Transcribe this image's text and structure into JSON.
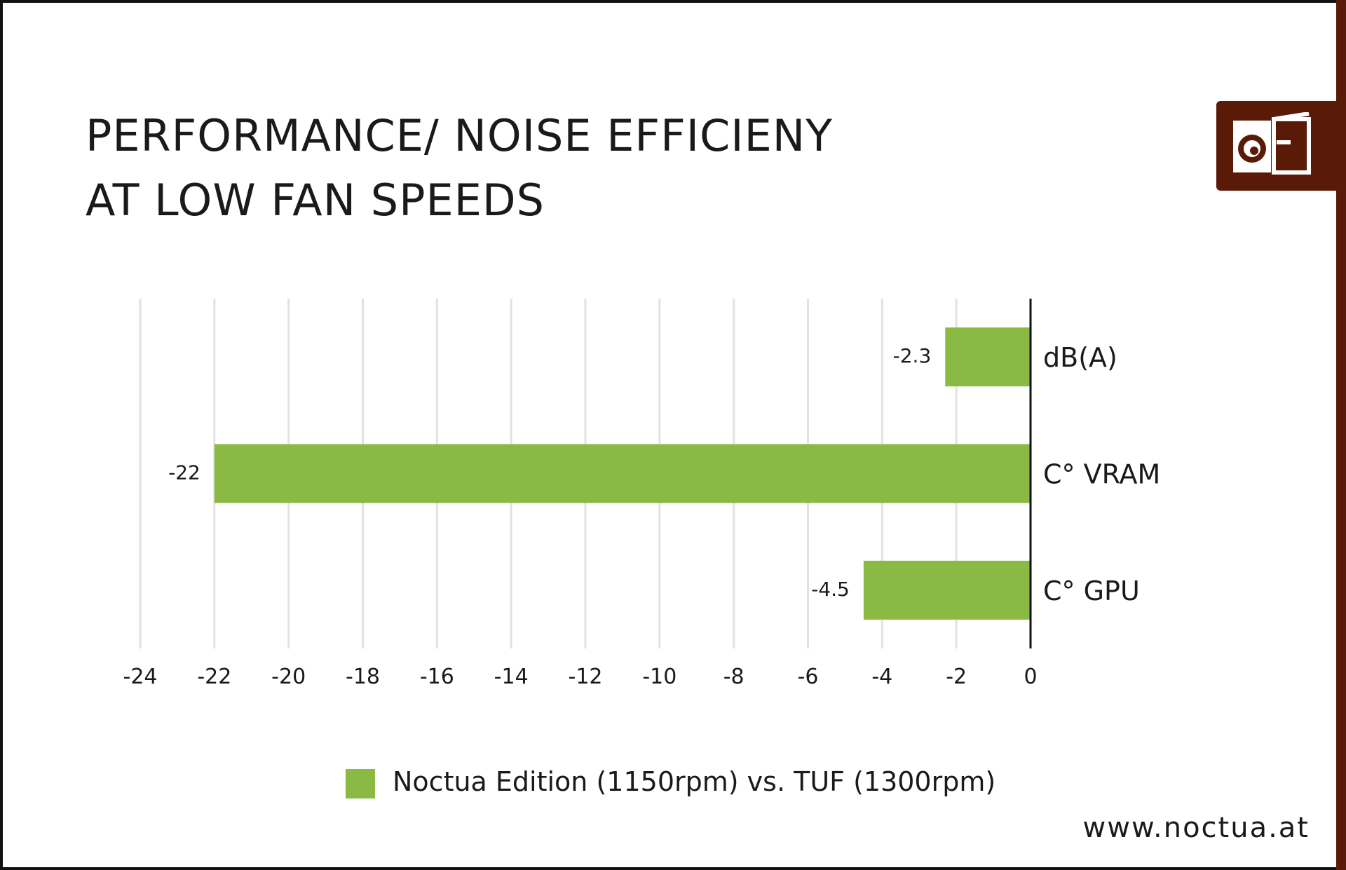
{
  "header": {
    "title_line1": "PERFORMANCE/ NOISE EFFICIENY",
    "title_line2": "AT LOW FAN SPEEDS"
  },
  "footer": {
    "url": "www.noctua.at"
  },
  "logo": {
    "icon": "noctua-owl-logo-icon",
    "color": "#5a1a08"
  },
  "colors": {
    "bar": "#8ab944",
    "grid": "#e2e2e2",
    "axis": "#111111",
    "text": "#1a1a1a"
  },
  "chart_data": {
    "type": "bar",
    "orientation": "horizontal",
    "categories": [
      "dB(A)",
      "C° VRAM",
      "C° GPU"
    ],
    "series": [
      {
        "name": "Noctua Edition (1150rpm) vs. TUF (1300rpm)",
        "values": [
          -2.3,
          -22,
          -4.5
        ]
      }
    ],
    "data_labels": [
      "-2.3",
      "-22",
      "-4.5"
    ],
    "x_ticks": [
      -24,
      -22,
      -20,
      -18,
      -16,
      -14,
      -12,
      -10,
      -8,
      -6,
      -4,
      -2,
      0
    ],
    "xlim": [
      -24,
      0
    ],
    "grid": true,
    "legend_position": "bottom",
    "category_labels_position": "right-of-axis"
  }
}
